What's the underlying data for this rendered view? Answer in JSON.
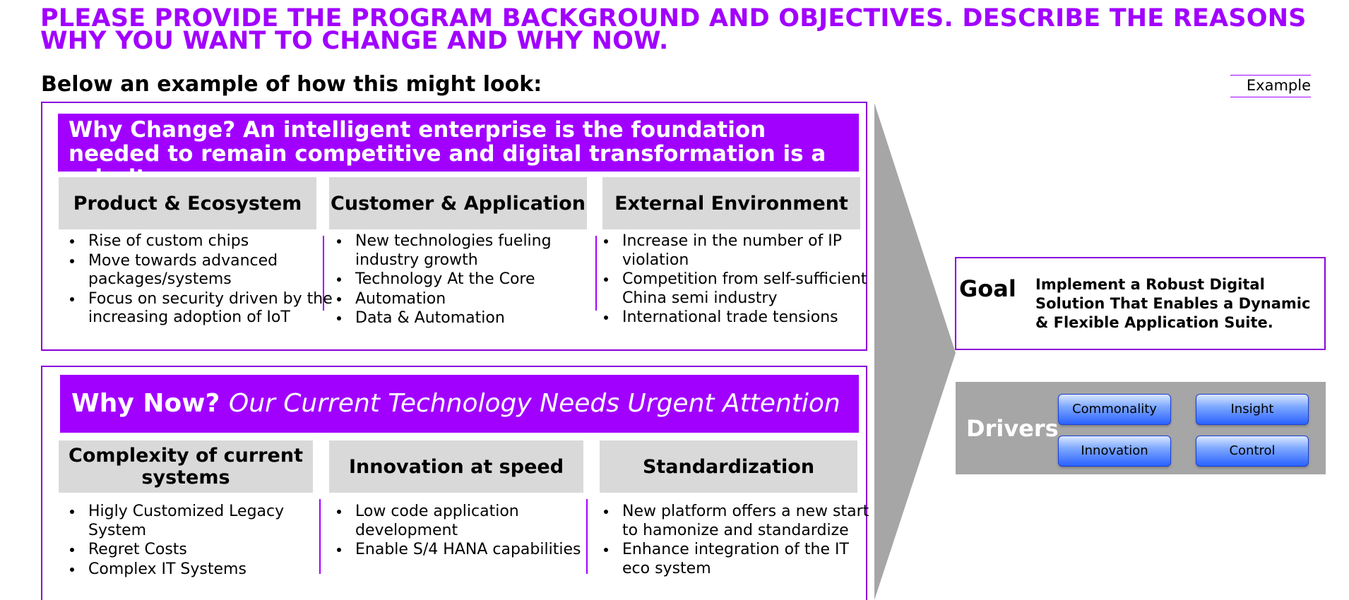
{
  "title": "PLEASE PROVIDE THE PROGRAM BACKGROUND AND OBJECTIVES. DESCRIBE THE REASONS WHY YOU WANT TO CHANGE AND WHY NOW.",
  "subtitle": "Below an example of how this might look:",
  "example_tag": "Example",
  "why_change": {
    "banner": "Why Change? An intelligent enterprise is the foundation needed to remain competitive and digital transformation is a priority",
    "columns": [
      {
        "heading": "Product & Ecosystem",
        "items": [
          "Rise of custom chips",
          "Move towards advanced packages/systems",
          "Focus on security driven by the increasing adoption of IoT"
        ]
      },
      {
        "heading": "Customer & Application",
        "items": [
          "New technologies fueling industry growth",
          "Technology At the Core",
          "Automation",
          "Data & Automation"
        ]
      },
      {
        "heading": "External Environment",
        "items": [
          "Increase in the number of IP violation",
          "Competition from self-sufficient China semi industry",
          "International trade tensions"
        ]
      }
    ]
  },
  "why_now": {
    "banner_bold": "Why Now?",
    "banner_italic": "Our Current Technology Needs Urgent Attention",
    "columns": [
      {
        "heading": "Complexity of current systems",
        "items": [
          "Higly Customized Legacy System",
          "Regret Costs",
          "Complex IT Systems"
        ]
      },
      {
        "heading": "Innovation at speed",
        "items": [
          "Low code application development",
          "Enable S/4 HANA capabilities"
        ]
      },
      {
        "heading": "Standardization",
        "items": [
          "New platform offers a new start to hamonize and standardize",
          "Enhance integration of the IT eco system"
        ]
      }
    ]
  },
  "goal": {
    "label": "Goal",
    "text": "Implement a Robust Digital Solution That Enables a Dynamic & Flexible Application Suite."
  },
  "drivers": {
    "label": "Drivers",
    "items": [
      "Commonality",
      "Insight",
      "Innovation",
      "Control"
    ]
  },
  "colors": {
    "accent": "#a100ff",
    "panel_border": "#8b00d8",
    "header_gray": "#d9d9d9",
    "chevron_gray": "#a6a6a6",
    "driver_blue": "#2a62ff"
  }
}
